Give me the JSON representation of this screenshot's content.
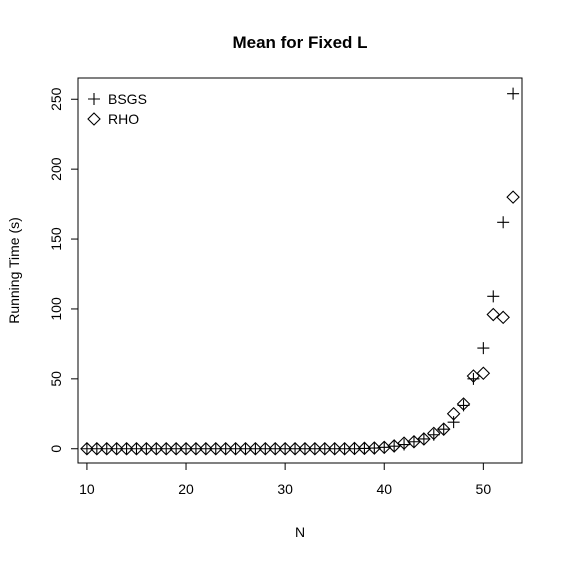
{
  "chart_data": {
    "type": "scatter",
    "title": "Mean for Fixed L",
    "xlabel": "N",
    "ylabel": "Running Time (s)",
    "xlim": [
      9.1,
      53.9
    ],
    "ylim": [
      -10.2,
      265.2
    ],
    "xticks": [
      10,
      20,
      30,
      40,
      50
    ],
    "yticks": [
      0,
      50,
      100,
      150,
      200,
      250
    ],
    "grid": false,
    "legend_position": "top-left",
    "series": [
      {
        "name": "BSGS",
        "marker": "plus",
        "x": [
          10,
          11,
          12,
          13,
          14,
          15,
          16,
          17,
          18,
          19,
          20,
          21,
          22,
          23,
          24,
          25,
          26,
          27,
          28,
          29,
          30,
          31,
          32,
          33,
          34,
          35,
          36,
          37,
          38,
          39,
          40,
          41,
          42,
          43,
          44,
          45,
          46,
          47,
          48,
          49,
          50,
          51,
          52,
          53
        ],
        "y": [
          0,
          0,
          0,
          0,
          0,
          0,
          0,
          0,
          0,
          0,
          0,
          0,
          0,
          0,
          0,
          0,
          0,
          0,
          0,
          0,
          0,
          0,
          0,
          0,
          0,
          0,
          0,
          0,
          0.2,
          0.5,
          1,
          1.8,
          3,
          5,
          7,
          10,
          14,
          19,
          31,
          50,
          72,
          109,
          162,
          254
        ]
      },
      {
        "name": "RHO",
        "marker": "diamond",
        "x": [
          10,
          11,
          12,
          13,
          14,
          15,
          16,
          17,
          18,
          19,
          20,
          21,
          22,
          23,
          24,
          25,
          26,
          27,
          28,
          29,
          30,
          31,
          32,
          33,
          34,
          35,
          36,
          37,
          38,
          39,
          40,
          41,
          42,
          43,
          44,
          45,
          46,
          47,
          48,
          49,
          50,
          51,
          52,
          53
        ],
        "y": [
          0,
          0,
          0,
          0,
          0,
          0,
          0,
          0,
          0,
          0,
          0,
          0,
          0,
          0,
          0,
          0,
          0,
          0,
          0,
          0,
          0,
          0,
          0,
          0,
          0,
          0,
          0,
          0.2,
          0.3,
          0.5,
          1,
          2,
          4,
          5,
          7,
          11,
          14,
          25,
          32,
          52,
          54,
          96,
          94,
          180
        ]
      }
    ]
  }
}
